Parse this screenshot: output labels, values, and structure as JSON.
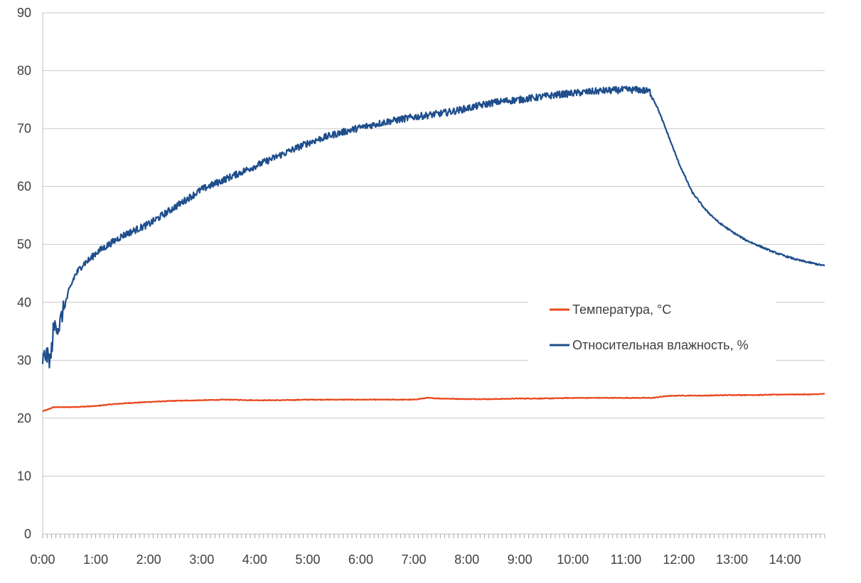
{
  "chart_data": {
    "type": "line",
    "title": "",
    "xlabel": "",
    "ylabel": "",
    "ylim": [
      0,
      90
    ],
    "yticks": [
      0,
      10,
      20,
      30,
      40,
      50,
      60,
      70,
      80,
      90
    ],
    "xlim_hours": [
      0,
      14.75
    ],
    "x_tick_labels": [
      "0:00",
      "1:00",
      "2:00",
      "3:00",
      "4:00",
      "5:00",
      "6:00",
      "7:00",
      "8:00",
      "9:00",
      "10:00",
      "11:00",
      "12:00",
      "13:00",
      "14:00"
    ],
    "grid": true,
    "legend_position": "right-center",
    "series": [
      {
        "name": "Температура, °C",
        "color": "#e8471c",
        "x_hours": [
          0.0,
          0.1,
          0.2,
          0.25,
          0.5,
          0.8,
          1.0,
          1.3,
          1.6,
          2.0,
          2.5,
          3.0,
          3.5,
          4.0,
          4.5,
          5.0,
          5.5,
          6.0,
          6.5,
          7.0,
          7.25,
          7.5,
          8.0,
          8.5,
          9.0,
          9.5,
          10.0,
          10.5,
          11.0,
          11.5,
          11.75,
          12.0,
          12.5,
          13.0,
          13.5,
          14.0,
          14.5,
          14.75
        ],
        "values": [
          21.2,
          21.5,
          21.9,
          21.9,
          21.9,
          22.0,
          22.1,
          22.4,
          22.6,
          22.8,
          23.0,
          23.1,
          23.2,
          23.1,
          23.1,
          23.2,
          23.2,
          23.2,
          23.2,
          23.2,
          23.5,
          23.4,
          23.3,
          23.3,
          23.4,
          23.4,
          23.5,
          23.5,
          23.5,
          23.5,
          23.8,
          23.9,
          23.9,
          24.0,
          24.0,
          24.1,
          24.1,
          24.2
        ]
      },
      {
        "name": "Относительная влажность, %",
        "color": "#1f4e8c",
        "x_hours": [
          0.0,
          0.05,
          0.1,
          0.15,
          0.2,
          0.25,
          0.3,
          0.4,
          0.5,
          0.6,
          0.75,
          0.9,
          1.0,
          1.25,
          1.5,
          1.75,
          2.0,
          2.25,
          2.5,
          2.75,
          3.0,
          3.25,
          3.5,
          3.75,
          4.0,
          4.25,
          4.5,
          4.75,
          5.0,
          5.25,
          5.5,
          5.75,
          6.0,
          6.25,
          6.5,
          6.75,
          7.0,
          7.25,
          7.5,
          7.75,
          8.0,
          8.25,
          8.5,
          8.75,
          9.0,
          9.25,
          9.5,
          9.75,
          10.0,
          10.25,
          10.5,
          10.75,
          11.0,
          11.25,
          11.45,
          11.6,
          11.75,
          12.0,
          12.25,
          12.5,
          12.75,
          13.0,
          13.25,
          13.5,
          13.75,
          14.0,
          14.25,
          14.5,
          14.75
        ],
        "values": [
          30.0,
          31.0,
          30.5,
          30.0,
          35.0,
          36.5,
          35.5,
          39.0,
          42.0,
          44.5,
          46.5,
          47.5,
          48.5,
          50.0,
          51.5,
          52.5,
          53.5,
          55.0,
          56.5,
          58.0,
          59.5,
          60.5,
          61.5,
          62.5,
          63.5,
          64.5,
          65.5,
          66.5,
          67.5,
          68.3,
          69.0,
          69.6,
          70.2,
          70.7,
          71.2,
          71.6,
          72.0,
          72.3,
          72.6,
          73.0,
          73.5,
          74.0,
          74.5,
          74.8,
          75.0,
          75.3,
          75.6,
          75.9,
          76.1,
          76.3,
          76.5,
          76.6,
          76.7,
          76.7,
          76.4,
          73.5,
          70.0,
          64.0,
          59.0,
          56.0,
          53.8,
          52.2,
          50.8,
          49.8,
          48.8,
          48.0,
          47.3,
          46.8,
          46.3
        ]
      }
    ]
  }
}
